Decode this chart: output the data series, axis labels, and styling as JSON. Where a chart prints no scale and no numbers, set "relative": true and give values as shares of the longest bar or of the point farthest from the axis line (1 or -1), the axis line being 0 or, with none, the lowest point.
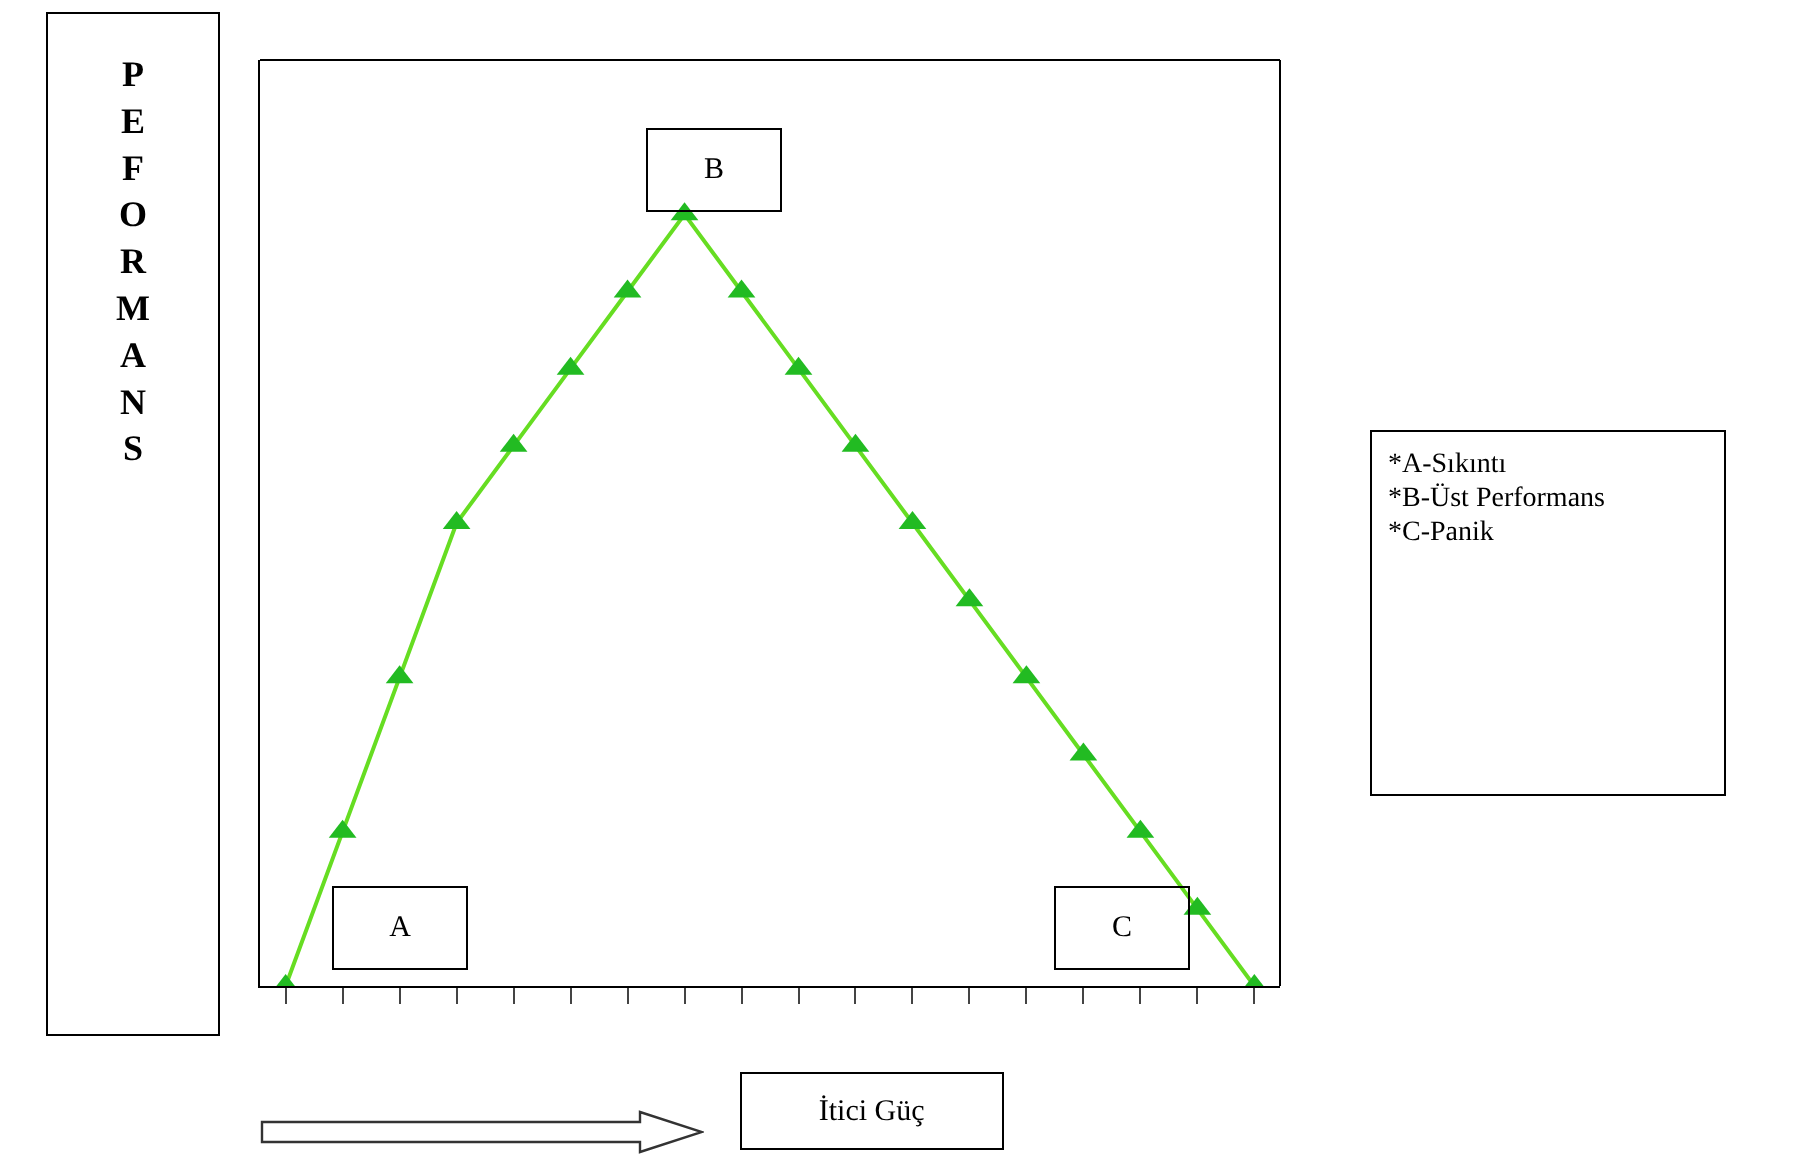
{
  "chart_data": {
    "type": "line",
    "relative": true,
    "ylabel": "PEFORMANS",
    "xlabel": "İtici Güç",
    "categories": [
      null,
      null,
      null,
      null,
      null,
      null,
      null,
      null,
      null,
      null,
      null,
      null,
      null,
      null,
      null,
      null,
      null,
      null
    ],
    "series": [
      {
        "color": "#66dd22",
        "values": [
          0,
          0.2,
          0.4,
          0.6,
          0.7,
          0.8,
          0.9,
          1,
          0.9,
          0.8,
          0.7,
          0.6,
          0.5,
          0.4,
          0.3,
          0.2,
          0.1,
          0
        ]
      }
    ],
    "marker": "triangle",
    "line_style": "solid",
    "annotations": [
      "A",
      "B",
      "C",
      "*A-Sıkıntı",
      "*B-Üst Performans",
      "*C-Panik"
    ]
  }
}
